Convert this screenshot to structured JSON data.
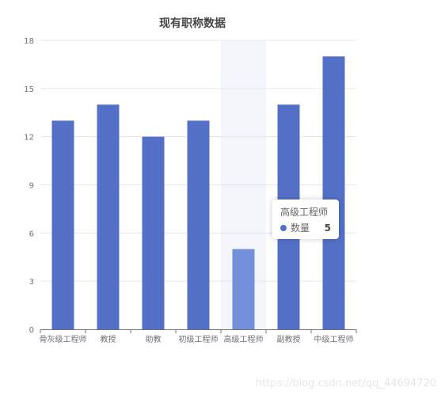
{
  "chart_data": {
    "type": "bar",
    "title": "现有职称数据",
    "categories": [
      "骨灰级工程师",
      "教授",
      "助教",
      "初级工程师",
      "高级工程师",
      "副教授",
      "中级工程师"
    ],
    "series": [
      {
        "name": "数量",
        "values": [
          13,
          14,
          12,
          13,
          5,
          14,
          17
        ]
      }
    ],
    "ylim": [
      0,
      18
    ],
    "yticks": [
      "0",
      "3",
      "6",
      "9",
      "12",
      "15",
      "18"
    ],
    "grid": true,
    "highlighted_index": 4,
    "colors": {
      "bar": "#5470c6",
      "bar_highlight": "#7490dc",
      "axis_pointer": "#f3f5fb"
    }
  },
  "tooltip": {
    "title": "高级工程师",
    "series_name": "数量",
    "value": "5"
  },
  "watermark": "https://blog.csdn.net/qq_44694720"
}
